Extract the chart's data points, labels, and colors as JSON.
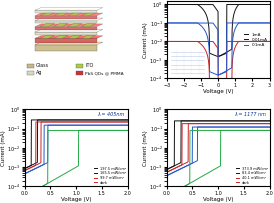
{
  "top_left": {
    "layers": [
      {
        "label": "Glass",
        "color": "#c8b882"
      },
      {
        "label": "ITO",
        "color": "#aacc44"
      },
      {
        "label": "Ag",
        "color": "#d8d8c0"
      },
      {
        "label": "PbS QDs @ PMMA",
        "color": "#cc3333"
      }
    ]
  },
  "top_right": {
    "xlabel": "Voltage (V)",
    "ylabel": "Current (mA)",
    "xlim": [
      -3,
      3
    ],
    "ylim": [
      0.0001,
      1.0
    ],
    "legend": [
      "1mA",
      "0.01mA",
      "0.1mA"
    ],
    "colors": [
      "#111111",
      "#cc2222",
      "#2255cc"
    ]
  },
  "bottom_left": {
    "xlabel": "Voltage (V)",
    "ylabel": "Current (mA)",
    "xlim": [
      0,
      2.0
    ],
    "ylim": [
      0.0001,
      1.0
    ],
    "lambda_label": "λ = 405nm",
    "legend": [
      "197.5 mW/cm²",
      "165.5 mW/cm²",
      "99.7 mW/cm²",
      "dark"
    ],
    "colors": [
      "#111111",
      "#cc2222",
      "#2255cc",
      "#22aa44"
    ]
  },
  "bottom_right": {
    "xlabel": "Voltage (V)",
    "ylabel": "Current (mA)",
    "xlim": [
      0,
      2.0
    ],
    "ylim": [
      0.0001,
      1.0
    ],
    "lambda_label": "λ = 1177 nm",
    "legend": [
      "373.9 mW/cm²",
      "83.4 mW/cm²",
      "40.1 mW/cm²",
      "dark"
    ],
    "colors": [
      "#111111",
      "#cc2222",
      "#2255cc",
      "#22aa44"
    ]
  },
  "fig_bg": "#ffffff"
}
